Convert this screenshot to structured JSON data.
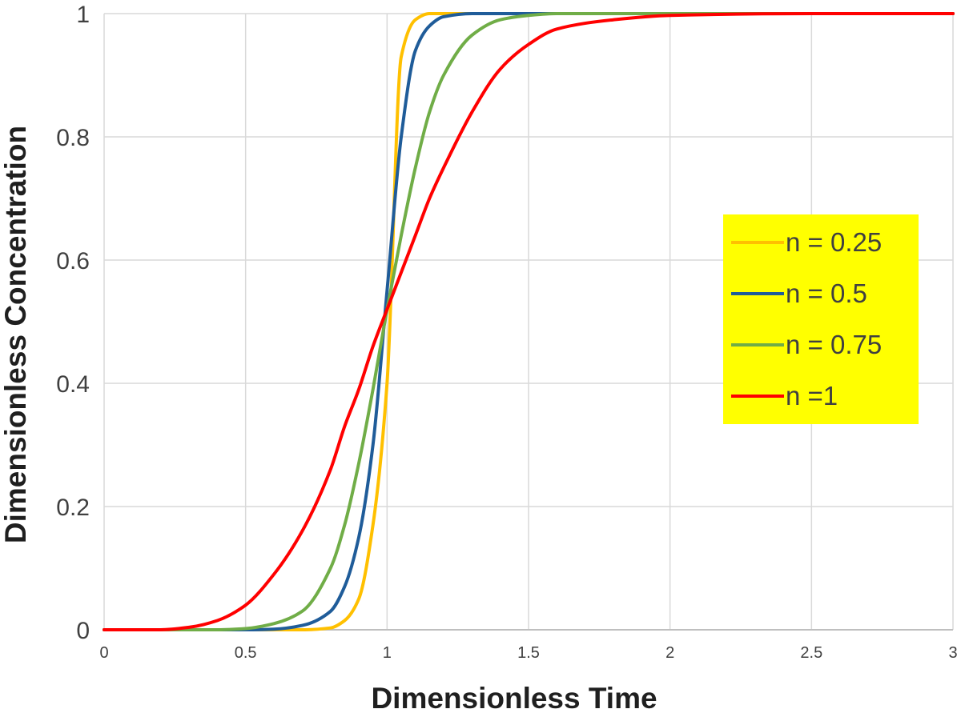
{
  "chart_data": {
    "type": "line",
    "title": "",
    "xlabel": "Dimensionless Time",
    "ylabel": "Dimensionless Concentration",
    "xlim": [
      0,
      3
    ],
    "ylim": [
      0,
      1
    ],
    "x_ticks": [
      "0",
      "0.5",
      "1",
      "1.5",
      "2",
      "2.5",
      "3"
    ],
    "y_ticks": [
      "0",
      "0.2",
      "0.4",
      "0.6",
      "0.8",
      "1"
    ],
    "grid": true,
    "legend_position": "right",
    "x": [
      0,
      0.2,
      0.3,
      0.4,
      0.5,
      0.6,
      0.7,
      0.8,
      0.85,
      0.9,
      0.95,
      1.0,
      1.05,
      1.1,
      1.15,
      1.2,
      1.3,
      1.4,
      1.5,
      1.6,
      1.8,
      2.0,
      2.5,
      3.0
    ],
    "series": [
      {
        "name": "n = 0.25",
        "color": "#FFC000",
        "values": [
          0,
          0,
          0,
          0,
          0,
          0,
          0,
          0.003,
          0.015,
          0.05,
          0.17,
          0.4,
          0.93,
          0.99,
          1,
          1,
          1,
          1,
          1,
          1,
          1,
          1,
          1,
          1
        ]
      },
      {
        "name": "n = 0.5",
        "color": "#1F5C99",
        "values": [
          0,
          0,
          0,
          0,
          0,
          0.001,
          0.007,
          0.03,
          0.07,
          0.15,
          0.3,
          0.55,
          0.8,
          0.94,
          0.98,
          0.995,
          1,
          1,
          1,
          1,
          1,
          1,
          1,
          1
        ]
      },
      {
        "name": "n = 0.75",
        "color": "#70AD47",
        "values": [
          0,
          0,
          0,
          0,
          0.002,
          0.01,
          0.03,
          0.1,
          0.17,
          0.27,
          0.39,
          0.52,
          0.64,
          0.75,
          0.84,
          0.9,
          0.965,
          0.99,
          0.997,
          1,
          1,
          1,
          1,
          1
        ]
      },
      {
        "name": "n =1",
        "color": "#FF0000",
        "values": [
          0,
          0,
          0.004,
          0.015,
          0.04,
          0.09,
          0.16,
          0.26,
          0.33,
          0.39,
          0.46,
          0.52,
          0.58,
          0.64,
          0.7,
          0.75,
          0.84,
          0.91,
          0.95,
          0.975,
          0.99,
          0.997,
          1,
          1
        ]
      }
    ]
  }
}
